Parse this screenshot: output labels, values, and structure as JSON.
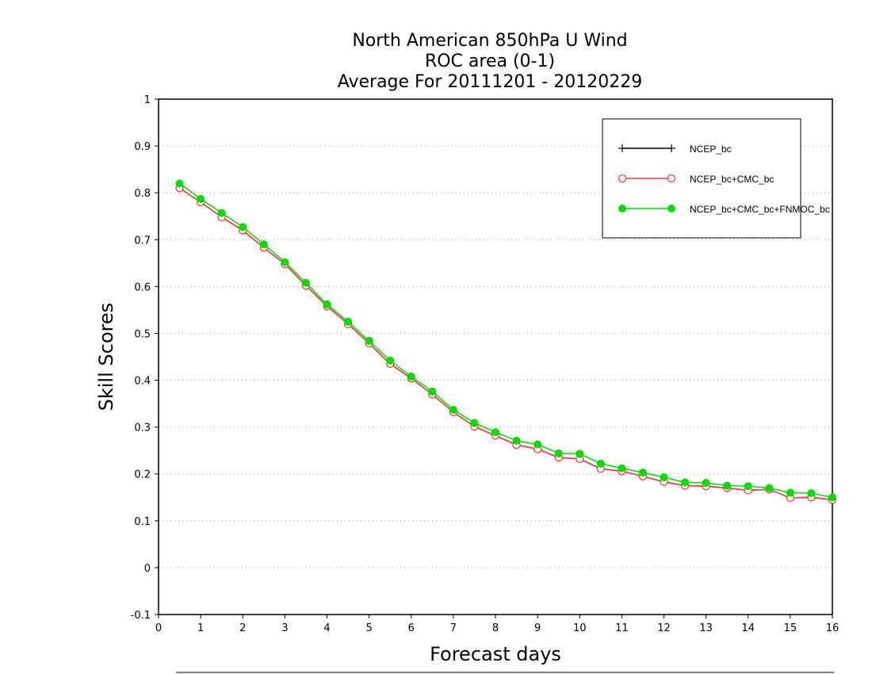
{
  "chart_data": {
    "type": "line",
    "title_lines": [
      "North American 850hPa U Wind",
      "ROC area (0-1)",
      "Average For 20111201 - 20120229"
    ],
    "xlabel": "Forecast days",
    "ylabel": "Skill Scores",
    "xlim": [
      0,
      16
    ],
    "ylim": [
      -0.1,
      1
    ],
    "x_ticks": [
      "0",
      "1",
      "2",
      "3",
      "4",
      "5",
      "6",
      "7",
      "8",
      "9",
      "10",
      "11",
      "12",
      "13",
      "14",
      "15",
      "16"
    ],
    "y_ticks": [
      "-0.1",
      "0",
      "0.1",
      "0.2",
      "0.3",
      "0.4",
      "0.5",
      "0.6",
      "0.7",
      "0.8",
      "0.9",
      "1"
    ],
    "grid": "horizontal dotted",
    "legend_position": "top-right",
    "x": [
      0.5,
      1,
      1.5,
      2,
      2.5,
      3,
      3.5,
      4,
      4.5,
      5,
      5.5,
      6,
      6.5,
      7,
      7.5,
      8,
      8.5,
      9,
      9.5,
      10,
      10.5,
      11,
      11.5,
      12,
      12.5,
      13,
      13.5,
      14,
      14.5,
      15,
      15.5,
      16
    ],
    "series": [
      {
        "name": "NCEP_bc",
        "color": "#000000",
        "marker": "plus",
        "values": [
          0.81,
          0.78,
          0.748,
          0.72,
          0.683,
          0.648,
          0.602,
          0.558,
          0.52,
          0.479,
          0.435,
          0.404,
          0.37,
          0.332,
          0.301,
          0.282,
          0.262,
          0.253,
          0.235,
          0.232,
          0.211,
          0.206,
          0.195,
          0.183,
          0.175,
          0.174,
          0.17,
          0.165,
          0.167,
          0.149,
          0.15,
          0.145
        ]
      },
      {
        "name": "NCEP_bc+CMC_bc",
        "color": "#ff3b3b",
        "marker": "open-circle",
        "values": [
          0.81,
          0.78,
          0.748,
          0.72,
          0.683,
          0.648,
          0.602,
          0.558,
          0.52,
          0.479,
          0.435,
          0.404,
          0.37,
          0.332,
          0.301,
          0.282,
          0.262,
          0.253,
          0.235,
          0.232,
          0.211,
          0.206,
          0.195,
          0.183,
          0.175,
          0.174,
          0.17,
          0.165,
          0.167,
          0.149,
          0.15,
          0.145
        ]
      },
      {
        "name": "NCEP_bc+CMC_bc+FNMOC_bc",
        "color": "#00dd00",
        "marker": "filled-circle",
        "values": [
          0.82,
          0.787,
          0.757,
          0.727,
          0.69,
          0.652,
          0.608,
          0.562,
          0.525,
          0.484,
          0.442,
          0.408,
          0.376,
          0.337,
          0.309,
          0.289,
          0.271,
          0.263,
          0.244,
          0.243,
          0.222,
          0.212,
          0.203,
          0.193,
          0.182,
          0.181,
          0.175,
          0.174,
          0.17,
          0.16,
          0.159,
          0.15
        ]
      }
    ]
  }
}
